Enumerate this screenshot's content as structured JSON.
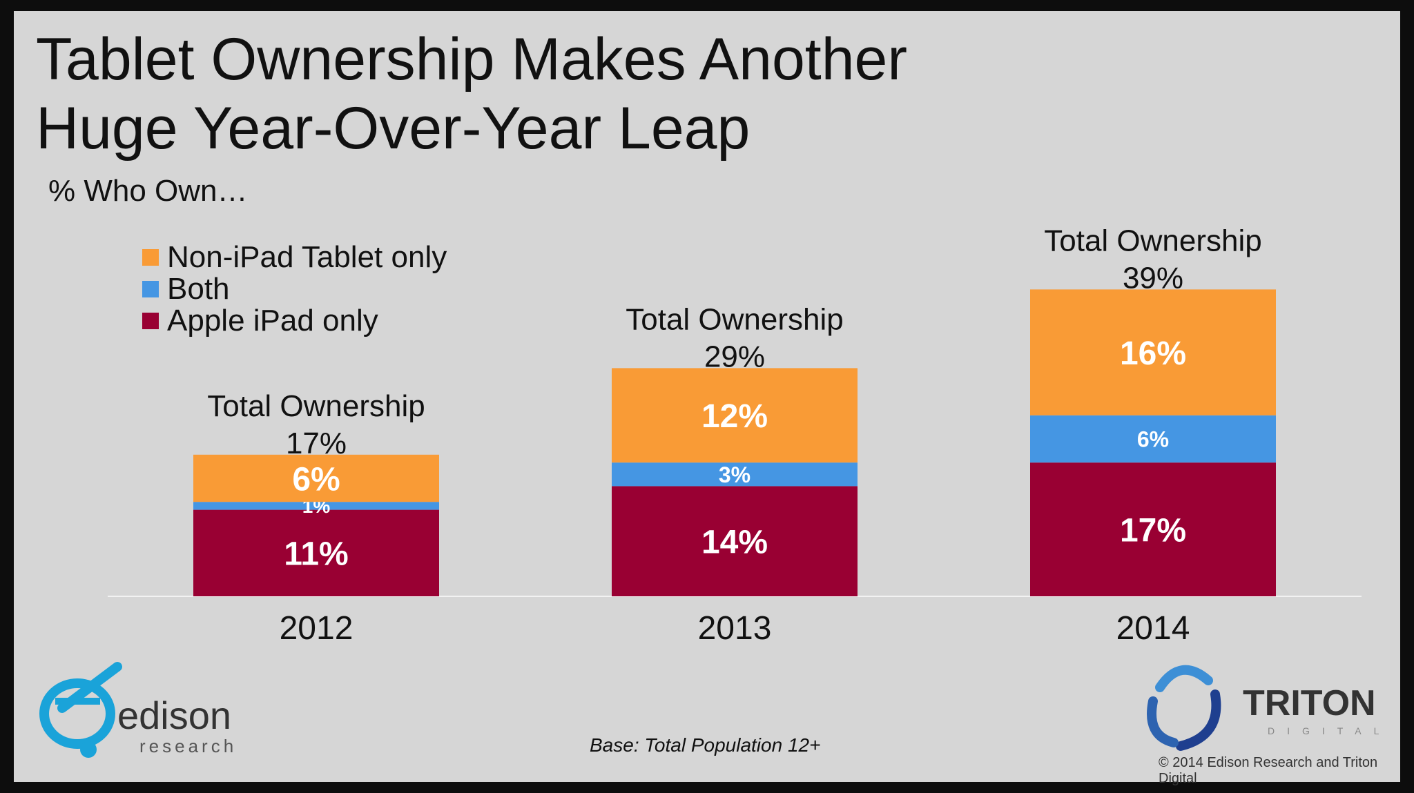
{
  "title_line1": "Tablet Ownership Makes Another",
  "title_line2": "Huge Year-Over-Year Leap",
  "subtitle": "% Who Own…",
  "footnote": "Base: Total Population 12+",
  "copyright": "© 2014 Edison Research and Triton Digital",
  "logos": {
    "edison_word": "edison",
    "edison_sub": "research",
    "triton_word": "TRITON",
    "triton_sub": "DIGITAL"
  },
  "colors": {
    "non_ipad": "#f99b36",
    "both": "#4596e3",
    "ipad": "#990033",
    "background": "#d6d6d6"
  },
  "chart_data": {
    "type": "bar",
    "stacked": true,
    "categories": [
      "2012",
      "2013",
      "2014"
    ],
    "series": [
      {
        "name": "Apple iPad only",
        "values": [
          11,
          14,
          17
        ],
        "labels": [
          "11%",
          "14%",
          "17%"
        ]
      },
      {
        "name": "Both",
        "values": [
          1,
          3,
          6
        ],
        "labels": [
          "1%",
          "3%",
          "6%"
        ]
      },
      {
        "name": "Non-iPad Tablet only",
        "values": [
          6,
          12,
          16
        ],
        "labels": [
          "6%",
          "12%",
          "16%"
        ]
      }
    ],
    "totals": [
      {
        "label": "Total Ownership",
        "value": "17%"
      },
      {
        "label": "Total Ownership",
        "value": "29%"
      },
      {
        "label": "Total Ownership",
        "value": "39%"
      }
    ],
    "legend": [
      "Non-iPad Tablet only",
      "Both",
      "Apple iPad only"
    ],
    "legend_position": "top-left",
    "grid": false
  }
}
